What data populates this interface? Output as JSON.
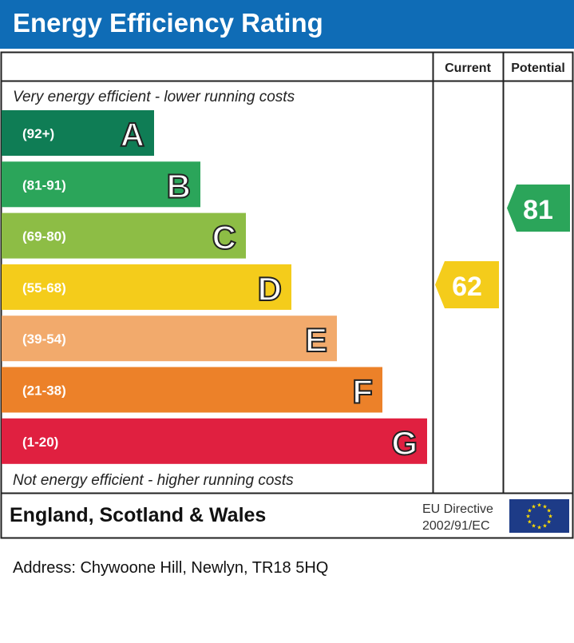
{
  "title": "Energy Efficiency Rating",
  "columns": {
    "current": "Current",
    "potential": "Potential"
  },
  "top_note": "Very energy efficient - lower running costs",
  "bottom_note": "Not energy efficient - higher running costs",
  "footer": {
    "region": "England, Scotland & Wales",
    "directive_line1": "EU Directive",
    "directive_line2": "2002/91/EC",
    "flag_icon": "eu-flag-icon"
  },
  "address": "Address: Chywoone Hill, Newlyn, TR18 5HQ",
  "chart_data": {
    "type": "bar",
    "bands": [
      {
        "letter": "A",
        "range": "(92+)",
        "color": "#0f7d55"
      },
      {
        "letter": "B",
        "range": "(81-91)",
        "color": "#2ba55a"
      },
      {
        "letter": "C",
        "range": "(69-80)",
        "color": "#8dbd45"
      },
      {
        "letter": "D",
        "range": "(55-68)",
        "color": "#f4cc1b"
      },
      {
        "letter": "E",
        "range": "(39-54)",
        "color": "#f2aa6c"
      },
      {
        "letter": "F",
        "range": "(21-38)",
        "color": "#ec8129"
      },
      {
        "letter": "G",
        "range": "(1-20)",
        "color": "#e02040"
      }
    ],
    "current": {
      "value": "62",
      "band": "D",
      "color": "#f4cc1b"
    },
    "potential": {
      "value": "81",
      "band": "B",
      "color": "#2ba55a"
    }
  }
}
